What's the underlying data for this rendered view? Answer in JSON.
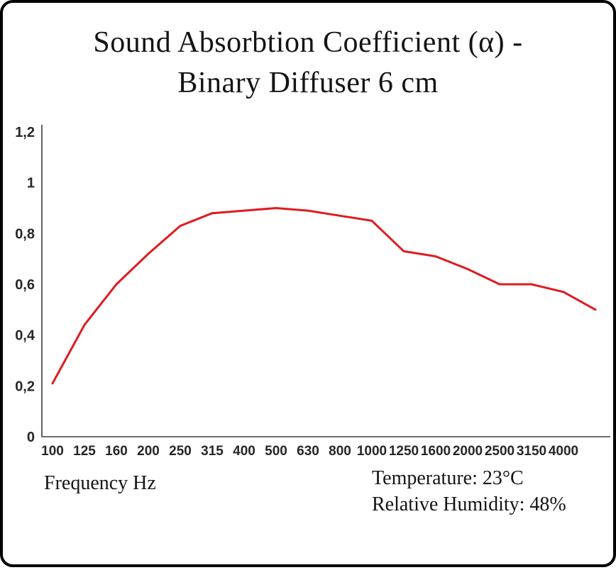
{
  "frame": {
    "background": "#ffffff",
    "border_color": "#000000"
  },
  "title": {
    "line1": "Sound Absorbtion Coefficient (α) -",
    "line2": "Binary Diffuser 6 cm"
  },
  "footer": {
    "x_axis_label": "Frequency Hz",
    "temperature": "Temperature: 23°C",
    "humidity": "Relative Humidity: 48%"
  },
  "chart_data": {
    "type": "line",
    "title": "Sound Absorbtion Coefficient (α) - Binary Diffuser 6 cm",
    "xlabel": "Frequency Hz",
    "ylabel": "",
    "categories": [
      "100",
      "125",
      "160",
      "200",
      "250",
      "315",
      "400",
      "500",
      "630",
      "800",
      "1000",
      "1250",
      "1600",
      "2000",
      "2500",
      "3150",
      "4000",
      ""
    ],
    "values": [
      0.21,
      0.44,
      0.6,
      0.72,
      0.83,
      0.88,
      0.89,
      0.9,
      0.89,
      0.87,
      0.85,
      0.73,
      0.71,
      0.66,
      0.6,
      0.6,
      0.57,
      0.5
    ],
    "ylim": [
      0,
      1.2
    ],
    "y_ticks": [
      "0",
      "0,2",
      "0,4",
      "0,6",
      "0,8",
      "1",
      "1,2"
    ],
    "y_tick_values": [
      0,
      0.2,
      0.4,
      0.6,
      0.8,
      1,
      1.2
    ],
    "line_color": "#df1b1f",
    "axis_color": "#3f3f3f",
    "grid": false,
    "legend": "none"
  }
}
